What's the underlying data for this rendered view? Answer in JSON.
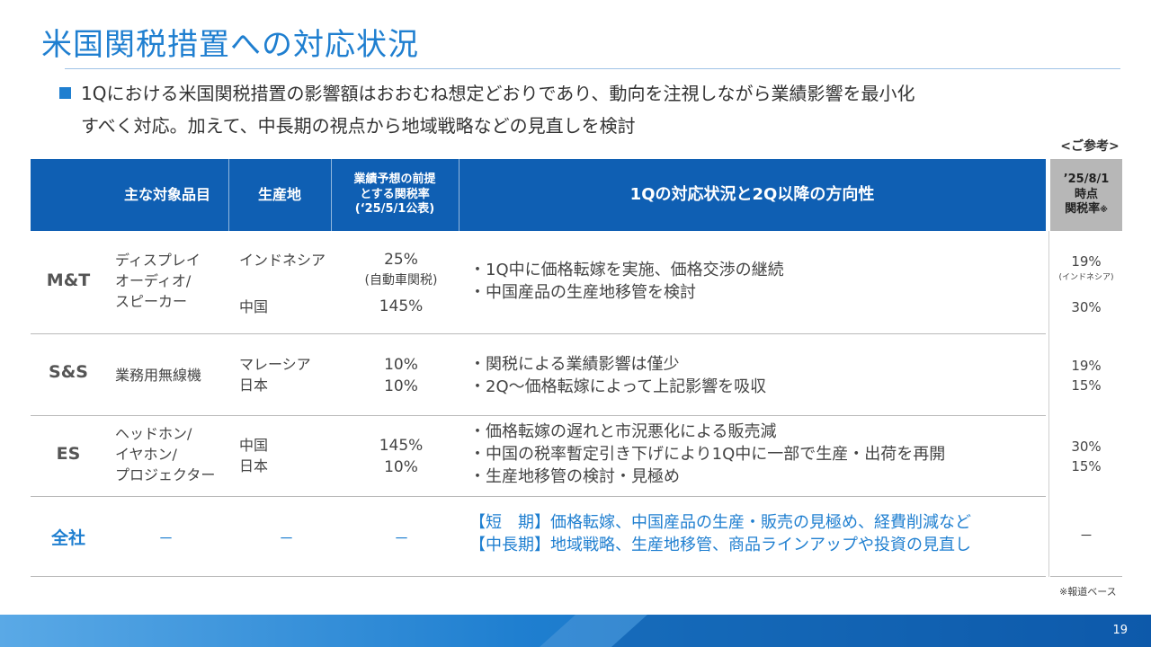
{
  "title": "米国関税措置への対応状況",
  "lead": {
    "line1": "1Qにおける米国関税措置の影響額はおおむね想定どおりであり、動向を注視しながら業績影響を最小化",
    "line2": "すべく対応。加えて、中長期の視点から地域戦略などの見直しを検討"
  },
  "reference_label": "<ご参考>",
  "header": {
    "items": "主な対象品目",
    "site": "生産地",
    "rate_l1": "業績予想の前提",
    "rate_l2": "とする関税率",
    "rate_l3": "(‘25/5/1公表)",
    "status": "1Qの対応状況と2Q以降の方向性",
    "ref_l1": "’25/8/1",
    "ref_l2": "時点",
    "ref_l3": "関税率",
    "ref_mark": "※"
  },
  "rows": {
    "mt": {
      "segment": "M&T",
      "item1": "ディスプレイ",
      "item2": "オーディオ/",
      "item3": "スピーカー",
      "site1": "インドネシア",
      "site2": "中国",
      "rate1": "25%",
      "rate1_note": "(自動車関税)",
      "rate2": "145%",
      "act1": "・1Q中に価格転嫁を実施、価格交渉の継続",
      "act2": "・中国産品の生産地移管を検討",
      "ref1": "19%",
      "ref1_note": "(インドネシア)",
      "ref2": "30%"
    },
    "ss": {
      "segment": "S&S",
      "item1": "業務用無線機",
      "site1": "マレーシア",
      "site2": "日本",
      "rate1": "10%",
      "rate2": "10%",
      "act1": "・関税による業績影響は僅少",
      "act2": "・2Q～価格転嫁によって上記影響を吸収",
      "ref1": "19%",
      "ref2": "15%"
    },
    "es": {
      "segment": "ES",
      "item1": "ヘッドホン/",
      "item2": "イヤホン/",
      "item3": "プロジェクター",
      "site1": "中国",
      "site2": "日本",
      "rate1": "145%",
      "rate2": "10%",
      "act1": "・価格転嫁の遅れと市況悪化による販売減",
      "act2": "・中国の税率暫定引き下げにより1Q中に一部で生産・出荷を再開",
      "act3": "・生産地移管の検討・見極め",
      "ref1": "30%",
      "ref2": "15%"
    },
    "all": {
      "segment": "全社",
      "item": "－",
      "site": "－",
      "rate": "－",
      "act1": "【短　期】価格転嫁、中国産品の生産・販売の見極め、経費削減など",
      "act2": "【中長期】地域戦略、生産地移管、商品ラインアップや投資の見直し",
      "ref": "－"
    }
  },
  "footnote": "※報道ベース",
  "page_number": "19",
  "colors": {
    "accent": "#1f7fd0",
    "header_bg": "#0f5fb3",
    "ref_header_bg": "#b7b7b7"
  }
}
